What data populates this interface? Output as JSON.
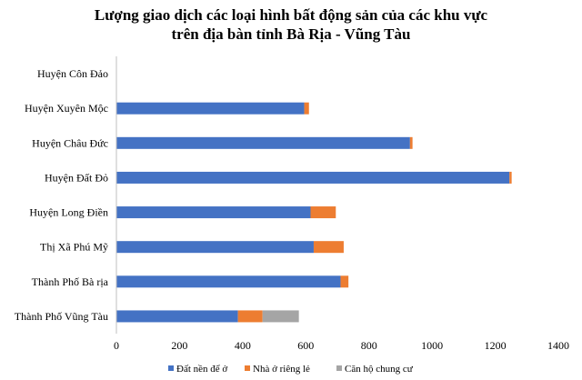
{
  "chart_data": {
    "type": "bar",
    "orientation": "horizontal",
    "stacked": true,
    "title": [
      "Lượng giao dịch các loại hình bất động sản của các khu vực",
      "trên địa bàn tỉnh Bà Rịa - Vũng Tàu"
    ],
    "categories": [
      "Huyện Côn Đảo",
      "Huyện Xuyên Mộc",
      "Huyện Châu Đức",
      "Huyện Đất Đỏ",
      "Huyện Long Điền",
      "Thị Xã Phú Mỹ",
      "Thành Phố Bà rịa",
      "Thành Phố Vũng Tàu"
    ],
    "series": [
      {
        "name": "Đất nền để ở",
        "color": "#4472C4",
        "values": [
          0,
          595,
          930,
          1245,
          615,
          625,
          710,
          385
        ]
      },
      {
        "name": "Nhà ở riêng lẻ",
        "color": "#ED7D31",
        "values": [
          0,
          15,
          8,
          7,
          80,
          95,
          25,
          78
        ]
      },
      {
        "name": "Căn hộ chung cư",
        "color": "#A5A5A5",
        "values": [
          0,
          0,
          0,
          0,
          0,
          0,
          0,
          115
        ]
      }
    ],
    "xlim": [
      0,
      1400
    ],
    "xticks": [
      0,
      200,
      400,
      600,
      800,
      1000,
      1200,
      1400
    ],
    "grid": false,
    "legend_position": "bottom"
  }
}
